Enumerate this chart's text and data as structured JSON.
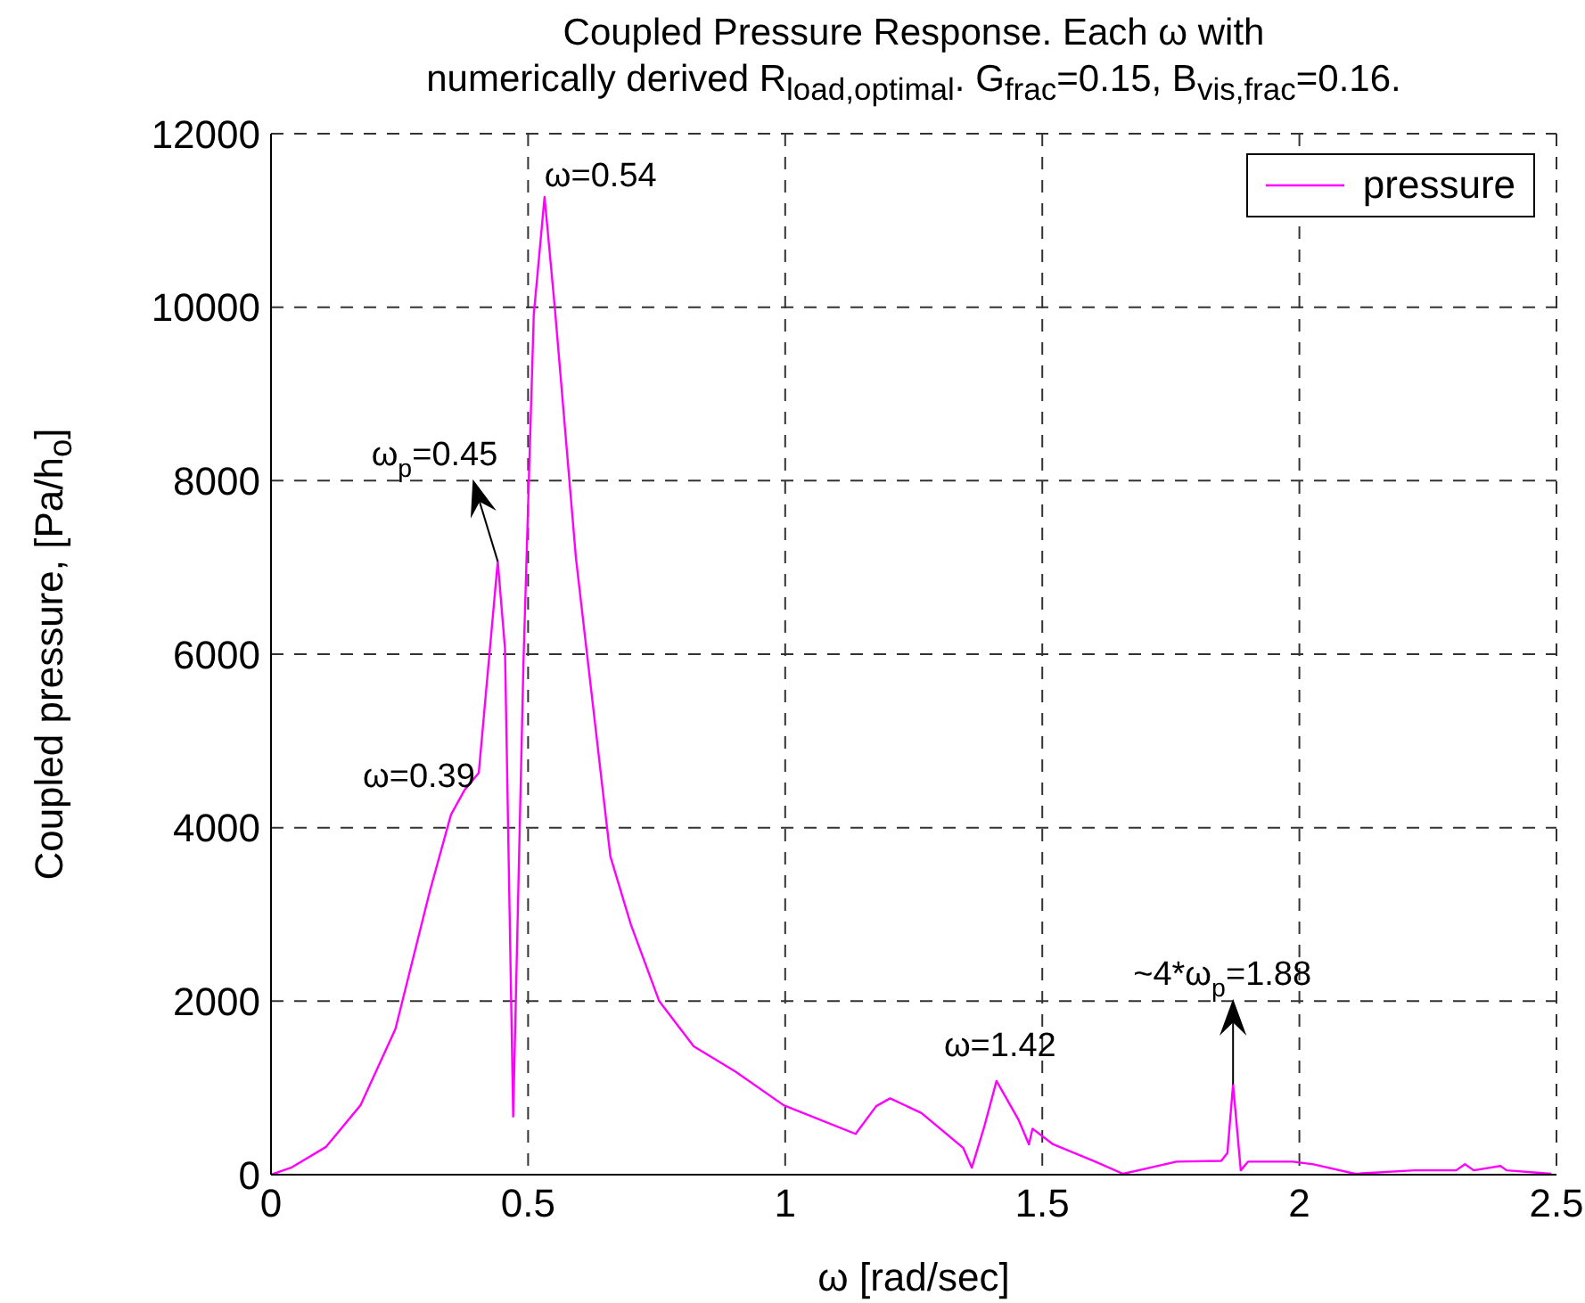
{
  "chart_data": {
    "type": "line",
    "title": "Coupled Pressure Response.  Each ω with\nnumerically derived R$_{load,optimal}$.  G$_{frac}$=0.15, B$_{vis,frac}$=0.16.",
    "xlabel": "ω [rad/sec]",
    "ylabel": "Coupled pressure, [Pa/h$_{o}$]",
    "x": [
      0,
      0.039,
      0.107,
      0.174,
      0.242,
      0.309,
      0.35,
      0.376,
      0.404,
      0.441,
      0.455,
      0.471,
      0.491,
      0.511,
      0.532,
      0.552,
      0.593,
      0.66,
      0.7,
      0.755,
      0.822,
      0.903,
      0.997,
      1.137,
      1.177,
      1.204,
      1.265,
      1.346,
      1.363,
      1.387,
      1.411,
      1.454,
      1.474,
      1.481,
      1.521,
      1.603,
      1.657,
      1.761,
      1.848,
      1.86,
      1.871,
      1.886,
      1.9,
      1.987,
      2.027,
      2.108,
      2.224,
      2.305,
      2.322,
      2.339,
      2.391,
      2.403,
      2.49
    ],
    "series": [
      {
        "name": "pressure",
        "color": "#ff00ff",
        "values": [
          0,
          80,
          320,
          800,
          1680,
          3270,
          4150,
          4430,
          4630,
          7070,
          6070,
          670,
          5910,
          9910,
          11270,
          9990,
          7110,
          3670,
          2880,
          2000,
          1480,
          1190,
          800,
          470,
          790,
          880,
          710,
          310,
          80,
          550,
          1080,
          630,
          350,
          530,
          350,
          150,
          10,
          150,
          160,
          250,
          1040,
          50,
          150,
          150,
          120,
          10,
          50,
          50,
          120,
          50,
          100,
          50,
          10
        ]
      }
    ],
    "annotations": [
      {
        "text": "ω=0.54",
        "x": 0.532,
        "y": 11270
      },
      {
        "text": "ω$_{p}$=0.45",
        "x": 0.441,
        "y": 7070
      },
      {
        "text": "ω=0.39",
        "x": 0.376,
        "y": 4430
      },
      {
        "text": "ω=1.42",
        "x": 1.411,
        "y": 1080
      },
      {
        "text": "~4*ω$_{p}$=1.88",
        "x": 1.871,
        "y": 1040
      }
    ],
    "xlim": [
      0,
      2.5
    ],
    "xticks": [
      0,
      0.5,
      1,
      1.5,
      2,
      2.5
    ],
    "ylim": [
      0,
      12000
    ],
    "yticks": [
      0,
      2000,
      4000,
      6000,
      8000,
      10000,
      12000
    ],
    "grid": true,
    "legend": "top right",
    "marker": "none",
    "line_style": "solid"
  }
}
